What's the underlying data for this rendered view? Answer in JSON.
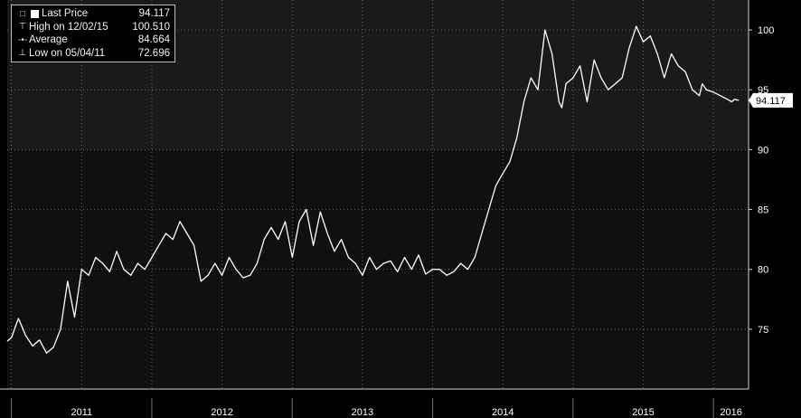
{
  "legend": {
    "items": [
      {
        "label": "Last Price",
        "value": "94.117"
      },
      {
        "label": "High on 12/02/15",
        "value": "100.510"
      },
      {
        "label": "Average",
        "value": "84.664"
      },
      {
        "label": "Low on 05/04/11",
        "value": "72.696"
      }
    ]
  },
  "colors": {
    "background": "#000000",
    "plot_upper": "#1a1a1a",
    "plot_lower": "#101010",
    "line": "#ffffff",
    "grid": "#8a8a8a",
    "text": "#ffffff"
  },
  "chart_data": {
    "type": "line",
    "title": "",
    "xlabel": "",
    "ylabel": "",
    "ylim": [
      70,
      102.5
    ],
    "y_ticks": [
      75,
      80,
      85,
      90,
      95,
      100
    ],
    "y_tick_labels": [
      "75",
      "80",
      "85",
      "90",
      "95",
      "100"
    ],
    "x_tick_labels": [
      "2011",
      "2012",
      "2013",
      "2014",
      "2015",
      "2016"
    ],
    "x_range": [
      2010.97,
      2016.25
    ],
    "grid": true,
    "legend_position": "top-left",
    "last_price_label": "94.117",
    "series": [
      {
        "name": "Last Price",
        "x": [
          2010.97,
          2011.0,
          2011.05,
          2011.1,
          2011.15,
          2011.2,
          2011.25,
          2011.3,
          2011.35,
          2011.4,
          2011.45,
          2011.5,
          2011.55,
          2011.6,
          2011.65,
          2011.7,
          2011.75,
          2011.8,
          2011.85,
          2011.9,
          2011.95,
          2012.0,
          2012.05,
          2012.1,
          2012.15,
          2012.2,
          2012.25,
          2012.3,
          2012.35,
          2012.4,
          2012.45,
          2012.5,
          2012.55,
          2012.6,
          2012.65,
          2012.7,
          2012.75,
          2012.8,
          2012.85,
          2012.9,
          2012.95,
          2013.0,
          2013.05,
          2013.1,
          2013.15,
          2013.2,
          2013.25,
          2013.3,
          2013.35,
          2013.4,
          2013.45,
          2013.5,
          2013.55,
          2013.6,
          2013.65,
          2013.7,
          2013.75,
          2013.8,
          2013.85,
          2013.9,
          2013.95,
          2014.0,
          2014.05,
          2014.1,
          2014.15,
          2014.2,
          2014.25,
          2014.3,
          2014.35,
          2014.4,
          2014.45,
          2014.5,
          2014.55,
          2014.6,
          2014.65,
          2014.7,
          2014.75,
          2014.8,
          2014.85,
          2014.9,
          2014.92,
          2014.95,
          2015.0,
          2015.05,
          2015.1,
          2015.15,
          2015.2,
          2015.25,
          2015.3,
          2015.35,
          2015.4,
          2015.45,
          2015.5,
          2015.55,
          2015.6,
          2015.65,
          2015.7,
          2015.75,
          2015.8,
          2015.85,
          2015.9,
          2015.92,
          2015.95,
          2016.0,
          2016.05,
          2016.1,
          2016.13,
          2016.15,
          2016.18
        ],
        "values": [
          74.0,
          74.3,
          75.9,
          74.5,
          73.6,
          74.1,
          73.0,
          73.5,
          75.0,
          79.0,
          76.0,
          80.0,
          79.5,
          81.0,
          80.5,
          79.8,
          81.5,
          80.0,
          79.5,
          80.5,
          80.0,
          81.0,
          82.0,
          83.0,
          82.5,
          84.0,
          83.0,
          82.0,
          79.0,
          79.5,
          80.5,
          79.5,
          81.0,
          80.0,
          79.3,
          79.5,
          80.5,
          82.5,
          83.5,
          82.5,
          84.0,
          81.0,
          84.0,
          85.0,
          82.0,
          84.8,
          83.0,
          81.5,
          82.5,
          81.0,
          80.5,
          79.5,
          81.0,
          80.0,
          80.5,
          80.7,
          79.8,
          81.0,
          80.0,
          81.2,
          79.6,
          80.0,
          80.0,
          79.5,
          79.8,
          80.5,
          80.0,
          81.0,
          83.0,
          85.0,
          87.0,
          88.0,
          89.0,
          91.0,
          94.0,
          96.0,
          95.0,
          100.0,
          98.0,
          94.0,
          93.5,
          95.5,
          96.0,
          97.0,
          94.0,
          97.5,
          96.0,
          95.0,
          95.5,
          96.0,
          98.5,
          100.3,
          99.0,
          99.5,
          98.0,
          96.0,
          98.0,
          97.0,
          96.5,
          95.0,
          94.5,
          95.5,
          95.0,
          94.8,
          94.5,
          94.2,
          94.0,
          94.2,
          94.117
        ]
      }
    ]
  }
}
